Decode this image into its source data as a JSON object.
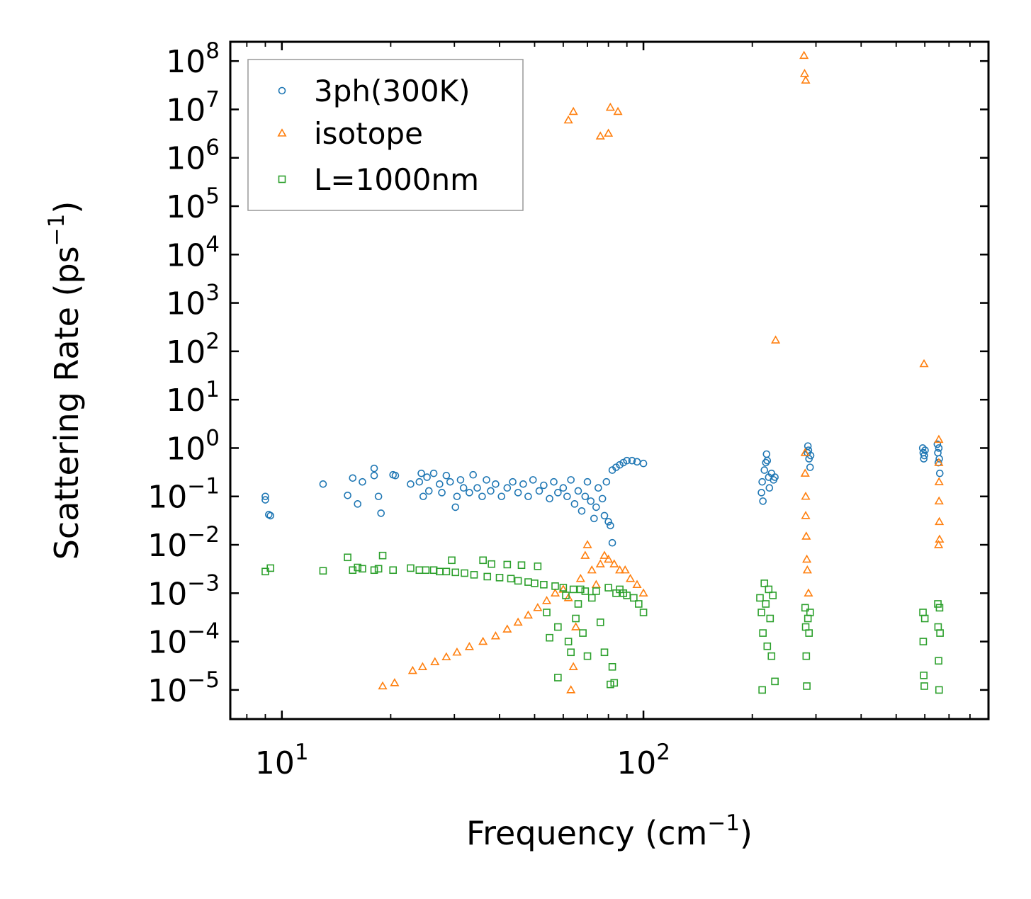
{
  "chart_data": {
    "type": "scatter",
    "title": "",
    "xlabel": {
      "base": "Frequency (cm",
      "sup": "−1",
      "tail": ")"
    },
    "ylabel": {
      "base": "Scattering Rate (ps",
      "sup": "−1",
      "tail": ")"
    },
    "xscale": "log",
    "yscale": "log",
    "xlim": [
      7.2,
      900
    ],
    "ylim": [
      2.5e-06,
      250000000
    ],
    "grid": false,
    "legend_position": "top-left",
    "x_ticks": [
      {
        "value": 10,
        "base": "10",
        "exp": "1"
      },
      {
        "value": 100,
        "base": "10",
        "exp": "2"
      }
    ],
    "y_ticks": [
      {
        "value": 100000000,
        "base": "10",
        "exp": "8"
      },
      {
        "value": 10000000,
        "base": "10",
        "exp": "7"
      },
      {
        "value": 1000000,
        "base": "10",
        "exp": "6"
      },
      {
        "value": 100000,
        "base": "10",
        "exp": "5"
      },
      {
        "value": 10000,
        "base": "10",
        "exp": "4"
      },
      {
        "value": 1000,
        "base": "10",
        "exp": "3"
      },
      {
        "value": 100,
        "base": "10",
        "exp": "2"
      },
      {
        "value": 10,
        "base": "10",
        "exp": "1"
      },
      {
        "value": 1,
        "base": "10",
        "exp": "0"
      },
      {
        "value": 0.1,
        "base": "10",
        "exp": "−1"
      },
      {
        "value": 0.01,
        "base": "10",
        "exp": "−2"
      },
      {
        "value": 0.001,
        "base": "10",
        "exp": "−3"
      },
      {
        "value": 0.0001,
        "base": "10",
        "exp": "−4"
      },
      {
        "value": 1e-05,
        "base": "10",
        "exp": "−5"
      }
    ],
    "series": [
      {
        "name": "3ph(300K)",
        "color": "#1f77b4",
        "marker": "circle",
        "points": [
          [
            9.0,
            0.1
          ],
          [
            9.0,
            0.085
          ],
          [
            9.2,
            0.042
          ],
          [
            9.3,
            0.04
          ],
          [
            13.0,
            0.18
          ],
          [
            15.2,
            0.105
          ],
          [
            15.7,
            0.24
          ],
          [
            16.2,
            0.07
          ],
          [
            16.7,
            0.2
          ],
          [
            18.0,
            0.38
          ],
          [
            18.0,
            0.27
          ],
          [
            18.5,
            0.1
          ],
          [
            18.8,
            0.045
          ],
          [
            20.3,
            0.28
          ],
          [
            20.6,
            0.27
          ],
          [
            22.7,
            0.18
          ],
          [
            24.0,
            0.2
          ],
          [
            24.3,
            0.3
          ],
          [
            24.6,
            0.1
          ],
          [
            25.2,
            0.25
          ],
          [
            25.5,
            0.13
          ],
          [
            26.3,
            0.3
          ],
          [
            27.3,
            0.18
          ],
          [
            27.7,
            0.12
          ],
          [
            28.5,
            0.27
          ],
          [
            29.2,
            0.2
          ],
          [
            30.2,
            0.06
          ],
          [
            30.5,
            0.1
          ],
          [
            31.2,
            0.22
          ],
          [
            31.8,
            0.15
          ],
          [
            33.0,
            0.12
          ],
          [
            33.8,
            0.28
          ],
          [
            34.7,
            0.15
          ],
          [
            35.8,
            0.1
          ],
          [
            36.8,
            0.22
          ],
          [
            37.8,
            0.13
          ],
          [
            39.0,
            0.18
          ],
          [
            40.5,
            0.1
          ],
          [
            42.0,
            0.15
          ],
          [
            43.5,
            0.2
          ],
          [
            45.0,
            0.12
          ],
          [
            46.5,
            0.18
          ],
          [
            48.0,
            0.1
          ],
          [
            49.5,
            0.22
          ],
          [
            51.5,
            0.13
          ],
          [
            53.0,
            0.17
          ],
          [
            55.0,
            0.09
          ],
          [
            56.5,
            0.2
          ],
          [
            58.0,
            0.12
          ],
          [
            60.0,
            0.15
          ],
          [
            61.5,
            0.1
          ],
          [
            63.0,
            0.22
          ],
          [
            64.5,
            0.07
          ],
          [
            66.0,
            0.13
          ],
          [
            67.5,
            0.05
          ],
          [
            69.0,
            0.1
          ],
          [
            70.0,
            0.2
          ],
          [
            71.5,
            0.08
          ],
          [
            73.0,
            0.035
          ],
          [
            74.0,
            0.06
          ],
          [
            75.0,
            0.15
          ],
          [
            77.0,
            0.09
          ],
          [
            78.0,
            0.04
          ],
          [
            79.0,
            0.2
          ],
          [
            80.0,
            0.03
          ],
          [
            81.0,
            0.025
          ],
          [
            82.0,
            0.35
          ],
          [
            82.0,
            0.011
          ],
          [
            84.0,
            0.4
          ],
          [
            86.0,
            0.45
          ],
          [
            88.0,
            0.5
          ],
          [
            90.0,
            0.55
          ],
          [
            93.0,
            0.55
          ],
          [
            96.0,
            0.52
          ],
          [
            100.0,
            0.48
          ],
          [
            212.0,
            0.12
          ],
          [
            213.0,
            0.2
          ],
          [
            214.0,
            0.08
          ],
          [
            216.0,
            0.35
          ],
          [
            218.0,
            0.5
          ],
          [
            219.0,
            0.75
          ],
          [
            220.0,
            0.55
          ],
          [
            222.0,
            0.25
          ],
          [
            223.0,
            0.15
          ],
          [
            226.0,
            0.3
          ],
          [
            229.0,
            0.22
          ],
          [
            231.0,
            0.25
          ],
          [
            284.0,
            0.8
          ],
          [
            285.0,
            1.1
          ],
          [
            286.0,
            0.9
          ],
          [
            287.0,
            0.6
          ],
          [
            289.0,
            0.4
          ],
          [
            290.0,
            0.7
          ],
          [
            592.0,
            1.0
          ],
          [
            594.0,
            0.8
          ],
          [
            596.0,
            0.6
          ],
          [
            598.0,
            0.7
          ],
          [
            601.0,
            0.9
          ],
          [
            650.0,
            1.2
          ],
          [
            652.0,
            0.8
          ],
          [
            654.0,
            0.5
          ],
          [
            656.0,
            1.0
          ],
          [
            658.0,
            0.6
          ],
          [
            660.0,
            0.3
          ]
        ]
      },
      {
        "name": "isotope",
        "color": "#ff7f0e",
        "marker": "triangle",
        "points": [
          [
            62.0,
            6000000
          ],
          [
            64.0,
            9000000
          ],
          [
            76.0,
            2800000
          ],
          [
            80.0,
            3200000
          ],
          [
            81.0,
            11000000
          ],
          [
            85.0,
            9000000
          ],
          [
            278.0,
            130000000
          ],
          [
            279.0,
            55000000
          ],
          [
            281.0,
            40000000
          ],
          [
            232.0,
            170
          ],
          [
            597.0,
            55
          ],
          [
            19.0,
            1.2e-05
          ],
          [
            20.5,
            1.4e-05
          ],
          [
            23.0,
            2.5e-05
          ],
          [
            24.5,
            3e-05
          ],
          [
            26.5,
            3.8e-05
          ],
          [
            28.5,
            4.8e-05
          ],
          [
            30.5,
            6e-05
          ],
          [
            33.0,
            7.8e-05
          ],
          [
            36.0,
            0.0001
          ],
          [
            39.0,
            0.00013
          ],
          [
            42.0,
            0.00018
          ],
          [
            45.0,
            0.00025
          ],
          [
            48.0,
            0.00035
          ],
          [
            51.0,
            0.0005
          ],
          [
            54.0,
            0.0007
          ],
          [
            57.0,
            0.001
          ],
          [
            60.0,
            0.0012
          ],
          [
            62.0,
            0.0008
          ],
          [
            64.0,
            3e-05
          ],
          [
            63.0,
            1e-05
          ],
          [
            65.0,
            0.0002
          ],
          [
            67.0,
            0.002
          ],
          [
            69.0,
            0.006
          ],
          [
            70.0,
            0.01
          ],
          [
            72.0,
            0.003
          ],
          [
            74.0,
            0.0015
          ],
          [
            76.0,
            0.004
          ],
          [
            78.0,
            0.006
          ],
          [
            80.0,
            0.005
          ],
          [
            83.0,
            0.004
          ],
          [
            86.0,
            0.003
          ],
          [
            89.0,
            0.003
          ],
          [
            92.0,
            0.002
          ],
          [
            96.0,
            0.0015
          ],
          [
            100.0,
            0.001
          ],
          [
            280.0,
            0.8
          ],
          [
            280.0,
            0.3
          ],
          [
            281.0,
            0.1
          ],
          [
            281.0,
            0.04
          ],
          [
            282.0,
            0.015
          ],
          [
            283.0,
            0.005
          ],
          [
            284.0,
            0.003
          ],
          [
            286.0,
            0.001
          ],
          [
            656.0,
            1.5
          ],
          [
            656.0,
            0.5
          ],
          [
            657.0,
            0.2
          ],
          [
            657.0,
            0.08
          ],
          [
            658.0,
            0.03
          ],
          [
            659.0,
            0.013
          ],
          [
            655.0,
            0.01
          ]
        ]
      },
      {
        "name": "L=1000nm",
        "color": "#2ca02c",
        "marker": "square",
        "points": [
          [
            9.0,
            0.0028
          ],
          [
            9.3,
            0.0033
          ],
          [
            13.0,
            0.0029
          ],
          [
            15.2,
            0.0055
          ],
          [
            15.7,
            0.003
          ],
          [
            16.2,
            0.0034
          ],
          [
            16.7,
            0.0032
          ],
          [
            18.0,
            0.003
          ],
          [
            18.5,
            0.0032
          ],
          [
            19.0,
            0.006
          ],
          [
            20.3,
            0.003
          ],
          [
            22.7,
            0.0033
          ],
          [
            24.0,
            0.003
          ],
          [
            25.0,
            0.003
          ],
          [
            26.3,
            0.003
          ],
          [
            27.3,
            0.0028
          ],
          [
            28.5,
            0.0028
          ],
          [
            29.5,
            0.0048
          ],
          [
            30.2,
            0.0027
          ],
          [
            32.0,
            0.0026
          ],
          [
            34.0,
            0.0024
          ],
          [
            36.0,
            0.0048
          ],
          [
            37.0,
            0.0022
          ],
          [
            38.0,
            0.004
          ],
          [
            40.0,
            0.0021
          ],
          [
            42.0,
            0.0039
          ],
          [
            43.0,
            0.002
          ],
          [
            45.0,
            0.0018
          ],
          [
            46.0,
            0.0038
          ],
          [
            48.0,
            0.0017
          ],
          [
            50.0,
            0.0016
          ],
          [
            51.0,
            0.0036
          ],
          [
            53.0,
            0.0015
          ],
          [
            54.0,
            0.0004
          ],
          [
            55.0,
            0.00012
          ],
          [
            57.0,
            0.0014
          ],
          [
            58.0,
            0.0002
          ],
          [
            60.0,
            0.0013
          ],
          [
            61.0,
            0.0009
          ],
          [
            62.0,
            0.0001
          ],
          [
            63.0,
            6e-05
          ],
          [
            64.0,
            0.0012
          ],
          [
            65.0,
            0.0003
          ],
          [
            66.0,
            0.0006
          ],
          [
            67.0,
            0.0012
          ],
          [
            68.0,
            0.00015
          ],
          [
            69.0,
            0.0011
          ],
          [
            70.0,
            5e-05
          ],
          [
            72.0,
            0.0008
          ],
          [
            74.0,
            0.0011
          ],
          [
            76.0,
            0.00025
          ],
          [
            78.0,
            6e-05
          ],
          [
            80.0,
            0.0013
          ],
          [
            82.0,
            3e-05
          ],
          [
            84.0,
            0.001
          ],
          [
            86.0,
            0.0012
          ],
          [
            88.0,
            0.001
          ],
          [
            90.0,
            0.0009
          ],
          [
            94.0,
            0.0008
          ],
          [
            97.0,
            0.0006
          ],
          [
            100.0,
            0.0004
          ],
          [
            58.0,
            1.8e-05
          ],
          [
            81.0,
            1.3e-05
          ],
          [
            83.0,
            1.4e-05
          ],
          [
            210.0,
            0.0008
          ],
          [
            212.0,
            0.0004
          ],
          [
            214.0,
            0.00015
          ],
          [
            216.0,
            0.0016
          ],
          [
            218.0,
            0.0006
          ],
          [
            220.0,
            8e-05
          ],
          [
            222.0,
            0.0012
          ],
          [
            224.0,
            0.0003
          ],
          [
            226.0,
            5e-05
          ],
          [
            228.0,
            0.0009
          ],
          [
            213.0,
            1e-05
          ],
          [
            231.0,
            1.5e-05
          ],
          [
            280.0,
            0.0005
          ],
          [
            281.0,
            0.0002
          ],
          [
            282.0,
            5e-05
          ],
          [
            283.0,
            1.2e-05
          ],
          [
            285.0,
            0.0003
          ],
          [
            287.0,
            0.00015
          ],
          [
            289.0,
            0.0004
          ],
          [
            593.0,
            0.0004
          ],
          [
            594.0,
            0.0001
          ],
          [
            596.0,
            2e-05
          ],
          [
            598.0,
            1.2e-05
          ],
          [
            600.0,
            0.0003
          ],
          [
            652.0,
            0.0006
          ],
          [
            653.0,
            0.0002
          ],
          [
            655.0,
            4e-05
          ],
          [
            657.0,
            1e-05
          ],
          [
            659.0,
            0.0005
          ],
          [
            661.0,
            0.00015
          ]
        ]
      }
    ]
  }
}
